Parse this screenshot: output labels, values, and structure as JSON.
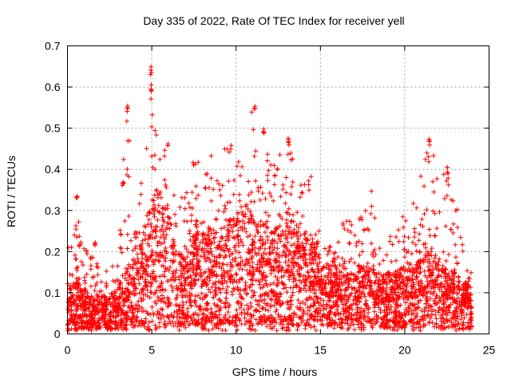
{
  "chart_data": {
    "type": "scatter",
    "title": "Day 335 of 2022, Rate Of TEC Index for receiver yell",
    "xlabel": "GPS time / hours",
    "ylabel": "ROTI / TECUs",
    "xlim": [
      0,
      25
    ],
    "ylim": [
      0,
      0.7
    ],
    "xticks": [
      0,
      5,
      10,
      15,
      20,
      25
    ],
    "yticks": [
      0,
      0.1,
      0.2,
      0.3,
      0.4,
      0.5,
      0.6,
      0.7
    ],
    "xtick_labels": [
      "0",
      "5",
      "10",
      "15",
      "20",
      "25"
    ],
    "ytick_labels": [
      "0",
      "0.1",
      "0.2",
      "0.3",
      "0.4",
      "0.5",
      "0.6",
      "0.7"
    ],
    "grid": true,
    "marker": "+",
    "color": "#ff0000",
    "x_data_range": [
      0,
      24
    ],
    "envelope": {
      "x": [
        0,
        0.5,
        1,
        1.5,
        2,
        2.5,
        3,
        3.5,
        4,
        4.5,
        5,
        5.5,
        6,
        6.5,
        7,
        7.5,
        8,
        8.5,
        9,
        9.5,
        10,
        10.5,
        11,
        11.5,
        12,
        12.5,
        13,
        13.5,
        14,
        14.5,
        15,
        15.5,
        16,
        16.5,
        17,
        17.5,
        18,
        18.5,
        19,
        19.5,
        20,
        20.5,
        21,
        21.5,
        22,
        22.5,
        23,
        23.5,
        24
      ],
      "typical": [
        0.06,
        0.07,
        0.06,
        0.05,
        0.05,
        0.05,
        0.06,
        0.09,
        0.1,
        0.14,
        0.18,
        0.2,
        0.16,
        0.11,
        0.1,
        0.14,
        0.15,
        0.14,
        0.13,
        0.15,
        0.16,
        0.17,
        0.16,
        0.15,
        0.14,
        0.14,
        0.15,
        0.14,
        0.14,
        0.12,
        0.1,
        0.09,
        0.09,
        0.08,
        0.08,
        0.09,
        0.09,
        0.08,
        0.08,
        0.08,
        0.09,
        0.09,
        0.1,
        0.12,
        0.1,
        0.09,
        0.08,
        0.07,
        0.06
      ],
      "upper": [
        0.2,
        0.3,
        0.22,
        0.19,
        0.16,
        0.15,
        0.2,
        0.56,
        0.3,
        0.4,
        0.65,
        0.44,
        0.47,
        0.3,
        0.38,
        0.44,
        0.42,
        0.45,
        0.46,
        0.45,
        0.47,
        0.5,
        0.56,
        0.4,
        0.5,
        0.44,
        0.48,
        0.44,
        0.42,
        0.4,
        0.22,
        0.22,
        0.22,
        0.3,
        0.25,
        0.3,
        0.36,
        0.25,
        0.23,
        0.28,
        0.3,
        0.35,
        0.4,
        0.48,
        0.4,
        0.4,
        0.34,
        0.22,
        0.15
      ]
    },
    "labeled_peaks": [
      {
        "x": 0.55,
        "y": 0.34
      },
      {
        "x": 1.65,
        "y": 0.235
      },
      {
        "x": 3.55,
        "y": 0.555
      },
      {
        "x": 4.95,
        "y": 0.65
      },
      {
        "x": 4.95,
        "y": 0.605
      },
      {
        "x": 11.1,
        "y": 0.565
      },
      {
        "x": 11.65,
        "y": 0.505
      },
      {
        "x": 13.1,
        "y": 0.48
      },
      {
        "x": 21.45,
        "y": 0.478
      },
      {
        "x": 22.55,
        "y": 0.405
      }
    ]
  }
}
